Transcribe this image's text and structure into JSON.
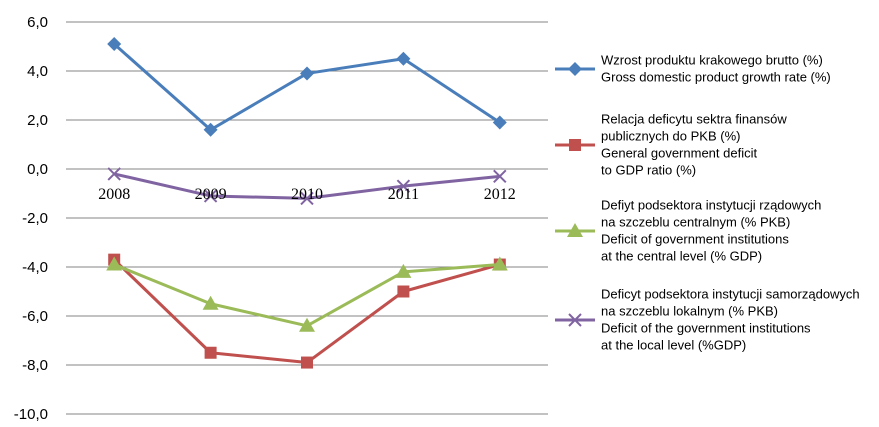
{
  "chart_data": {
    "type": "line",
    "categories": [
      "2008",
      "2009",
      "2010",
      "2011",
      "2012"
    ],
    "ylim": [
      -10,
      6
    ],
    "yticks": [
      "6,0",
      "4,0",
      "2,0",
      "0,0",
      "-2,0",
      "-4,0",
      "-6,0",
      "-8,0",
      "-10,0"
    ],
    "grid": true,
    "legend_position": "right",
    "series": [
      {
        "name": "Wzrost produktu krakowego brutto (%) Gross domestic product growth rate (%)",
        "legend_lines": [
          "Wzrost produktu krakowego brutto (%)",
          "Gross domestic product growth rate (%)"
        ],
        "color": "#4a7ebb",
        "marker": "diamond",
        "values": [
          5.1,
          1.6,
          3.9,
          4.5,
          1.9
        ]
      },
      {
        "name": "Relacja deficytu sektra finansów publicznych do PKB (%) General government deficit to GDP ratio (%)",
        "legend_lines": [
          "Relacja deficytu sektra finansów",
          "publicznych do PKB (%)",
          "General government deficit",
          "to GDP ratio (%)"
        ],
        "color": "#c0504d",
        "marker": "square",
        "values": [
          -3.7,
          -7.5,
          -7.9,
          -5.0,
          -3.9
        ]
      },
      {
        "name": "Defiyt podsektora instytucji rządowych na szczeblu centralnym (% PKB) Deficit of government institutions at the central level (% GDP)",
        "legend_lines": [
          "Defiyt podsektora instytucji rządowych",
          "na szczeblu centralnym (% PKB)",
          "Deficit of government institutions",
          "at the central level (% GDP)"
        ],
        "color": "#9bbb59",
        "marker": "triangle",
        "values": [
          -3.9,
          -5.5,
          -6.4,
          -4.2,
          -3.9
        ]
      },
      {
        "name": "Deficyt podsektora instytucji samorządowych na szczeblu lokalnym (% PKB) Deficit of the government institutions at the local level (%GDP)",
        "legend_lines": [
          "Deficyt podsektora instytucji samorządowych",
          "na szczeblu lokalnym (% PKB)",
          "Deficit of the government institutions",
          "at the local level (%GDP)"
        ],
        "color": "#8064a2",
        "marker": "x",
        "values": [
          -0.2,
          -1.1,
          -1.2,
          -0.7,
          -0.3
        ]
      }
    ]
  }
}
